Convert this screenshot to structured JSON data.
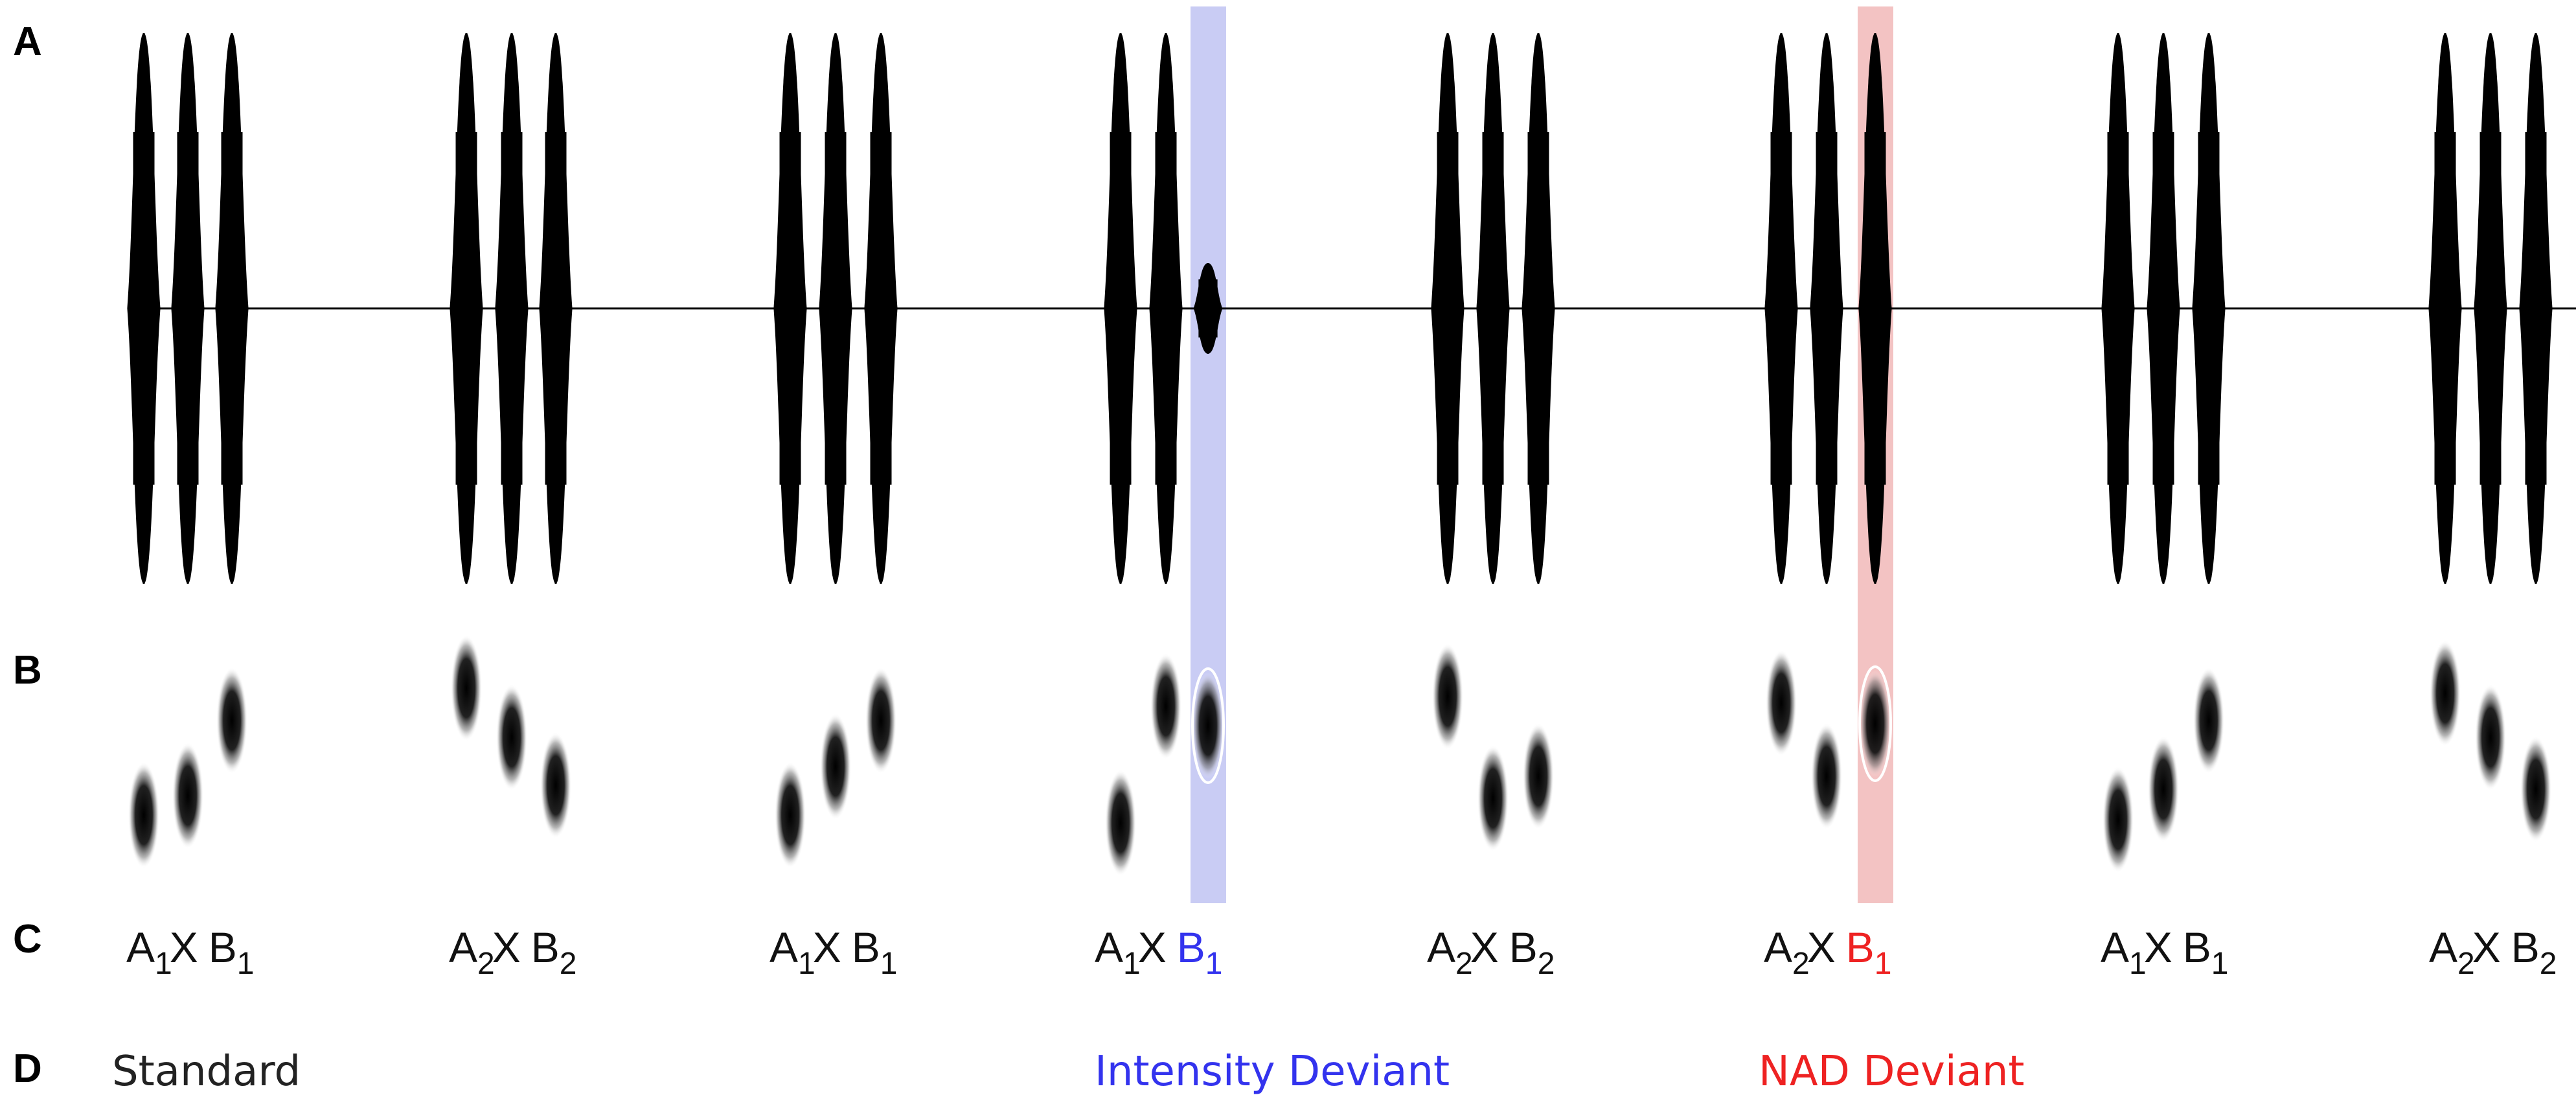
{
  "panel_labels": {
    "a": "A",
    "b": "B",
    "c": "C",
    "d": "D"
  },
  "colors": {
    "waveform": "#000000",
    "intensity_highlight": "#c9ccf4",
    "nad_highlight": "#f3c3c3",
    "intensity_text": "#3333ee",
    "nad_text": "#ee2222",
    "standard_text": "#222222"
  },
  "sequence": [
    {
      "a_index": "1",
      "x": "X",
      "b_letter": "B",
      "b_index": "1",
      "deviant": "none"
    },
    {
      "a_index": "2",
      "x": "X",
      "b_letter": "B",
      "b_index": "2",
      "deviant": "none"
    },
    {
      "a_index": "1",
      "x": "X",
      "b_letter": "B",
      "b_index": "1",
      "deviant": "none"
    },
    {
      "a_index": "1",
      "x": "X",
      "b_letter": "B",
      "b_index": "1",
      "deviant": "intensity"
    },
    {
      "a_index": "2",
      "x": "X",
      "b_letter": "B",
      "b_index": "2",
      "deviant": "none"
    },
    {
      "a_index": "2",
      "x": "X",
      "b_letter": "B",
      "b_index": "1",
      "deviant": "nad"
    },
    {
      "a_index": "1",
      "x": "X",
      "b_letter": "B",
      "b_index": "1",
      "deviant": "none"
    },
    {
      "a_index": "2",
      "x": "X",
      "b_letter": "B",
      "b_index": "2",
      "deviant": "none"
    }
  ],
  "condition_labels": {
    "standard": "Standard",
    "intensity": "Intensity Deviant",
    "nad": "NAD Deviant"
  }
}
